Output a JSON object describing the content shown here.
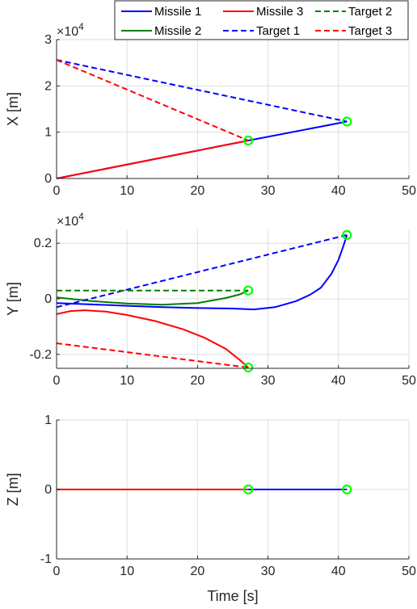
{
  "legend": {
    "entries": [
      {
        "label": "Missile 1",
        "color": "#0000ff",
        "style": "solid"
      },
      {
        "label": "Missile 3",
        "color": "#ff0000",
        "style": "solid"
      },
      {
        "label": "Target 2",
        "color": "#008000",
        "style": "dashed"
      },
      {
        "label": "Missile 2",
        "color": "#008000",
        "style": "solid"
      },
      {
        "label": "Target 1",
        "color": "#0000ff",
        "style": "dashed"
      },
      {
        "label": "Target 3",
        "color": "#ff0000",
        "style": "dashed"
      }
    ],
    "placement": "top"
  },
  "chart_data": [
    {
      "type": "line",
      "ylabel": "X [m]",
      "xlabel": "",
      "exponent_label": "×10",
      "exponent_power": "4",
      "xlim": [
        0,
        50
      ],
      "ylim": [
        0,
        30000
      ],
      "xticks": [
        0,
        10,
        20,
        30,
        40,
        50
      ],
      "yticks": [
        0,
        10000,
        20000,
        30000
      ],
      "ytick_labels": [
        "0",
        "1",
        "2",
        "3"
      ],
      "grid": true,
      "series": [
        {
          "name": "Missile 1",
          "color": "#0000ff",
          "dash": false,
          "x": [
            0,
            27.2,
            41.2
          ],
          "y": [
            0,
            8200,
            12300
          ]
        },
        {
          "name": "Missile 3",
          "color": "#ff0000",
          "dash": false,
          "x": [
            0,
            27.2
          ],
          "y": [
            0,
            8200
          ]
        },
        {
          "name": "Target 1",
          "color": "#0000ff",
          "dash": true,
          "x": [
            0,
            41.2
          ],
          "y": [
            25600,
            12300
          ]
        },
        {
          "name": "Target 3",
          "color": "#ff0000",
          "dash": true,
          "x": [
            0,
            27.2
          ],
          "y": [
            25600,
            8200
          ]
        }
      ],
      "markers": [
        {
          "x": 27.2,
          "y": 8200
        },
        {
          "x": 41.2,
          "y": 12300
        }
      ]
    },
    {
      "type": "line",
      "ylabel": "Y [m]",
      "xlabel": "",
      "exponent_label": "×10",
      "exponent_power": "4",
      "xlim": [
        0,
        50
      ],
      "ylim": [
        -2500,
        2500
      ],
      "xticks": [
        0,
        10,
        20,
        30,
        40,
        50
      ],
      "yticks": [
        -2000,
        0,
        2000
      ],
      "ytick_labels": [
        "-0.2",
        "0",
        "0.2"
      ],
      "grid": true,
      "series": [
        {
          "name": "Missile 1",
          "color": "#0000ff",
          "dash": false,
          "x": [
            0,
            5,
            10,
            15,
            20,
            25,
            28,
            31,
            34,
            36,
            37.5,
            39,
            40,
            40.7,
            41.2
          ],
          "y": [
            -150,
            -200,
            -250,
            -300,
            -330,
            -350,
            -380,
            -300,
            -80,
            150,
            400,
            900,
            1400,
            1900,
            2300
          ]
        },
        {
          "name": "Missile 2",
          "color": "#008000",
          "dash": false,
          "x": [
            0,
            5,
            10,
            15,
            20,
            24,
            26,
            27.2
          ],
          "y": [
            50,
            -80,
            -170,
            -210,
            -150,
            30,
            160,
            300
          ]
        },
        {
          "name": "Missile 3",
          "color": "#ff0000",
          "dash": false,
          "x": [
            0,
            2,
            4,
            7,
            10,
            14,
            18,
            21,
            24,
            26,
            27.2
          ],
          "y": [
            -550,
            -440,
            -410,
            -460,
            -580,
            -800,
            -1100,
            -1400,
            -1800,
            -2200,
            -2470
          ]
        },
        {
          "name": "Target 1",
          "color": "#0000ff",
          "dash": true,
          "x": [
            0,
            41.2
          ],
          "y": [
            -300,
            2300
          ]
        },
        {
          "name": "Target 2",
          "color": "#008000",
          "dash": true,
          "x": [
            0,
            27.2
          ],
          "y": [
            300,
            300
          ]
        },
        {
          "name": "Target 3",
          "color": "#ff0000",
          "dash": true,
          "x": [
            0,
            27.2
          ],
          "y": [
            -1600,
            -2470
          ]
        }
      ],
      "markers": [
        {
          "x": 41.2,
          "y": 2300
        },
        {
          "x": 27.2,
          "y": 300
        },
        {
          "x": 27.2,
          "y": -2470
        }
      ]
    },
    {
      "type": "line",
      "ylabel": "Z [m]",
      "xlabel": "Time [s]",
      "xlim": [
        0,
        50
      ],
      "ylim": [
        -1,
        1
      ],
      "xticks": [
        0,
        10,
        20,
        30,
        40,
        50
      ],
      "yticks": [
        -1,
        0,
        1
      ],
      "ytick_labels": [
        "-1",
        "0",
        "1"
      ],
      "grid": true,
      "series": [
        {
          "name": "Missile 1",
          "color": "#0000ff",
          "dash": false,
          "x": [
            0,
            41.2
          ],
          "y": [
            0,
            0
          ]
        },
        {
          "name": "Missile 3",
          "color": "#ff0000",
          "dash": false,
          "x": [
            0,
            27.2
          ],
          "y": [
            0,
            0
          ]
        }
      ],
      "markers": [
        {
          "x": 27.2,
          "y": 0
        },
        {
          "x": 41.2,
          "y": 0
        }
      ]
    }
  ],
  "marker_color": "#00ff00"
}
